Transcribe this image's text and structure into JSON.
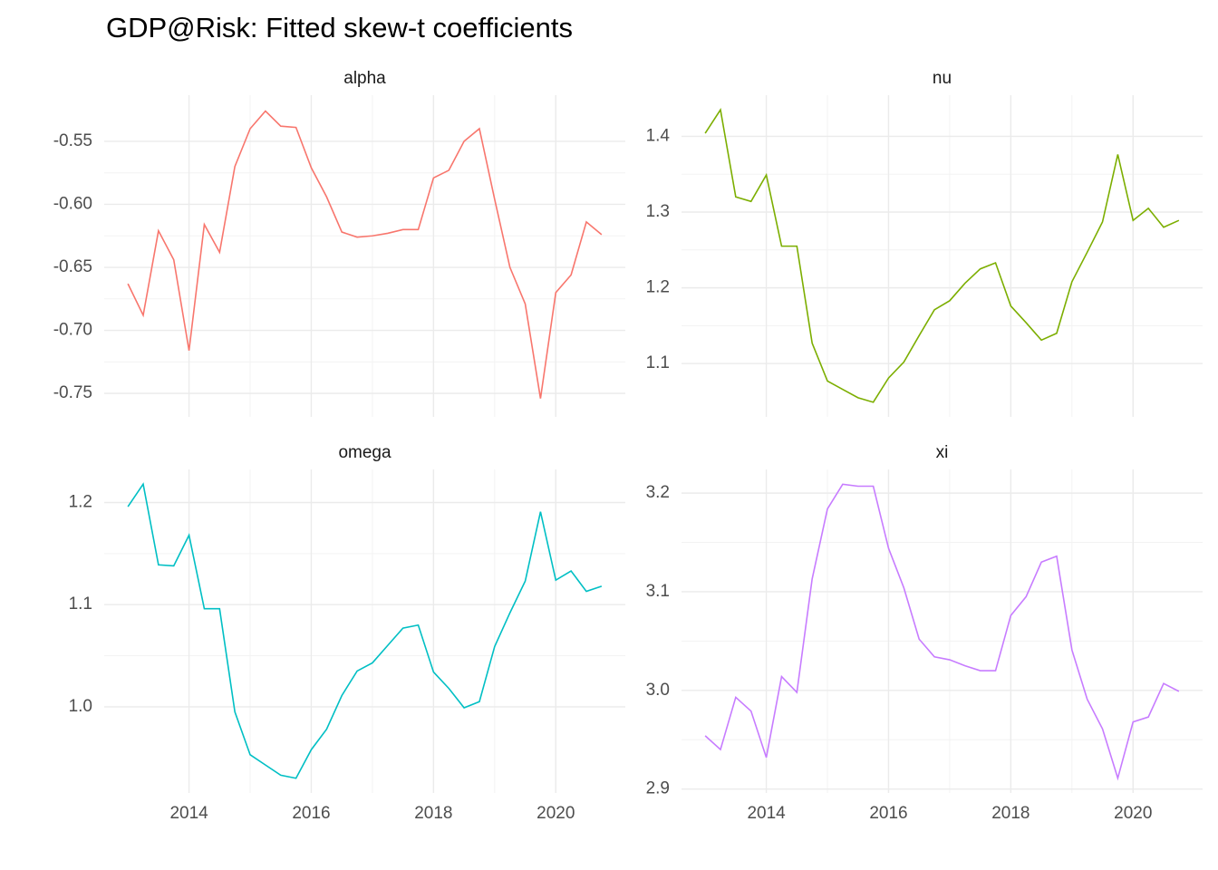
{
  "title": "GDP@Risk: Fitted skew-t coefficients",
  "chart_data": [
    {
      "type": "line",
      "title": "alpha",
      "color": "#F8766D",
      "grid": true,
      "x": [
        2013,
        2013.25,
        2013.5,
        2013.75,
        2014,
        2014.25,
        2014.5,
        2014.75,
        2015,
        2015.25,
        2015.5,
        2015.75,
        2016,
        2016.25,
        2016.5,
        2016.75,
        2017,
        2017.25,
        2017.5,
        2017.75,
        2018,
        2018.25,
        2018.5,
        2018.75,
        2019,
        2019.25,
        2019.5,
        2019.75,
        2020,
        2020.25,
        2020.5,
        2020.75
      ],
      "values": [
        -0.663,
        -0.688,
        -0.621,
        -0.644,
        -0.716,
        -0.616,
        -0.638,
        -0.57,
        -0.54,
        -0.526,
        -0.538,
        -0.539,
        -0.571,
        -0.594,
        -0.622,
        -0.626,
        -0.625,
        -0.623,
        -0.62,
        -0.62,
        -0.579,
        -0.573,
        -0.55,
        -0.54,
        -0.596,
        -0.65,
        -0.679,
        -0.754,
        -0.67,
        -0.656,
        -0.614,
        -0.624
      ],
      "xlim": [
        2012.6125,
        2021.1375
      ],
      "ylim": [
        -0.7686,
        -0.5134
      ],
      "xticks": [
        2014,
        2016,
        2018,
        2020
      ],
      "yticks": [
        -0.75,
        {
          "value": -0.7,
          "label": "-0.70"
        },
        -0.65,
        {
          "value": -0.6,
          "label": "-0.60"
        },
        -0.55
      ]
    },
    {
      "type": "line",
      "title": "nu",
      "color": "#7CAE00",
      "grid": true,
      "x": [
        2013,
        2013.25,
        2013.5,
        2013.75,
        2014,
        2014.25,
        2014.5,
        2014.75,
        2015,
        2015.25,
        2015.5,
        2015.75,
        2016,
        2016.25,
        2016.5,
        2016.75,
        2017,
        2017.25,
        2017.5,
        2017.75,
        2018,
        2018.25,
        2018.5,
        2018.75,
        2019,
        2019.25,
        2019.5,
        2019.75,
        2020,
        2020.25,
        2020.5,
        2020.75
      ],
      "values": [
        1.404,
        1.435,
        1.32,
        1.314,
        1.349,
        1.255,
        1.255,
        1.127,
        1.077,
        1.066,
        1.055,
        1.049,
        1.081,
        1.102,
        1.137,
        1.171,
        1.183,
        1.206,
        1.225,
        1.233,
        1.176,
        1.154,
        1.131,
        1.14,
        1.208,
        1.247,
        1.287,
        1.376,
        1.289,
        1.305,
        1.28,
        1.289
      ],
      "xlim": [
        2012.6125,
        2021.1375
      ],
      "ylim": [
        1.0297,
        1.4543
      ],
      "xticks": [
        2014,
        2016,
        2018,
        2020
      ],
      "yticks": [
        1.1,
        1.2,
        1.3,
        1.4
      ]
    },
    {
      "type": "line",
      "title": "omega",
      "color": "#00BFC4",
      "grid": true,
      "x": [
        2013,
        2013.25,
        2013.5,
        2013.75,
        2014,
        2014.25,
        2014.5,
        2014.75,
        2015,
        2015.25,
        2015.5,
        2015.75,
        2016,
        2016.25,
        2016.5,
        2016.75,
        2017,
        2017.25,
        2017.5,
        2017.75,
        2018,
        2018.25,
        2018.5,
        2018.75,
        2019,
        2019.25,
        2019.5,
        2019.75,
        2020,
        2020.25,
        2020.5,
        2020.75
      ],
      "values": [
        1.196,
        1.218,
        1.139,
        1.138,
        1.168,
        1.096,
        1.096,
        0.995,
        0.953,
        0.943,
        0.933,
        0.93,
        0.958,
        0.978,
        1.011,
        1.035,
        1.043,
        1.06,
        1.077,
        1.08,
        1.034,
        1.018,
        0.999,
        1.005,
        1.059,
        1.092,
        1.123,
        1.191,
        1.124,
        1.133,
        1.113,
        1.118
      ],
      "xlim": [
        2012.6125,
        2021.1375
      ],
      "ylim": [
        0.9156,
        1.2324
      ],
      "xticks": [
        2014,
        2016,
        2018,
        2020
      ],
      "yticks": [
        {
          "value": 1,
          "label": "1.0"
        },
        1.1,
        1.2
      ]
    },
    {
      "type": "line",
      "title": "xi",
      "color": "#C77CFF",
      "grid": true,
      "x": [
        2013,
        2013.25,
        2013.5,
        2013.75,
        2014,
        2014.25,
        2014.5,
        2014.75,
        2015,
        2015.25,
        2015.5,
        2015.75,
        2016,
        2016.25,
        2016.5,
        2016.75,
        2017,
        2017.25,
        2017.5,
        2017.75,
        2018,
        2018.25,
        2018.5,
        2018.75,
        2019,
        2019.25,
        2019.5,
        2019.75,
        2020,
        2020.25,
        2020.5,
        2020.75
      ],
      "values": [
        2.954,
        2.94,
        2.993,
        2.979,
        2.932,
        3.014,
        2.998,
        3.113,
        3.184,
        3.209,
        3.207,
        3.207,
        3.144,
        3.104,
        3.052,
        3.034,
        3.031,
        3.025,
        3.02,
        3.02,
        3.076,
        3.095,
        3.13,
        3.136,
        3.041,
        2.991,
        2.961,
        2.911,
        2.968,
        2.973,
        3.007,
        2.999
      ],
      "xlim": [
        2012.6125,
        2021.1375
      ],
      "ylim": [
        2.896,
        3.224
      ],
      "xticks": [
        2014,
        2016,
        2018,
        2020
      ],
      "yticks": [
        2.9,
        {
          "value": 3,
          "label": "3.0"
        },
        3.1,
        3.2
      ]
    }
  ]
}
